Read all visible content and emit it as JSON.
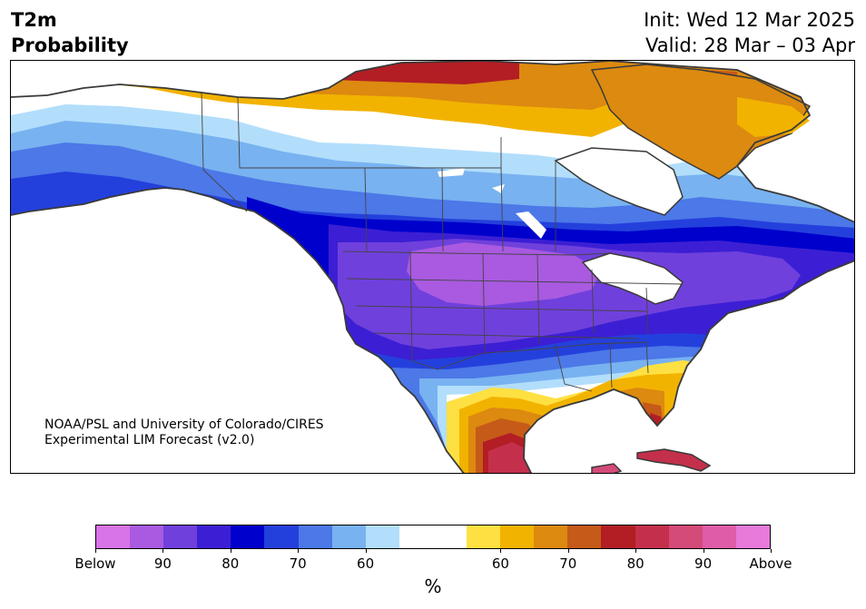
{
  "title": {
    "left_line1": "T2m",
    "left_line2": "Probability"
  },
  "dates": {
    "init": "Init: Wed 12 Mar 2025",
    "valid": "Valid: 28 Mar – 03 Apr"
  },
  "credit": {
    "line1": "NOAA/PSL and University of Colorado/CIRES",
    "line2": "Experimental LIM Forecast (v2.0)"
  },
  "colorbar": {
    "unit": "%",
    "colors": [
      "#d873e8",
      "#a95ae0",
      "#7040dc",
      "#3c1fd4",
      "#0000cc",
      "#2440dc",
      "#4c78e8",
      "#78b2f0",
      "#b2defc",
      "#ffffff",
      "#ffffff",
      "#ffe042",
      "#f2b300",
      "#dc8a10",
      "#c65a18",
      "#b21e24",
      "#c4304c",
      "#d44a78",
      "#de5ca8",
      "#e77ada"
    ],
    "tick_labels": [
      "Below",
      "90",
      "80",
      "70",
      "60",
      "60",
      "70",
      "80",
      "90",
      "Above"
    ]
  },
  "map": {
    "colors": {
      "coast": "#3a3a3a",
      "state": "#444444"
    },
    "features": [
      "north-america-land",
      "alaska",
      "canada",
      "contiguous-us",
      "mexico",
      "greenland",
      "cuba",
      "great-lakes",
      "hudson-bay"
    ]
  }
}
